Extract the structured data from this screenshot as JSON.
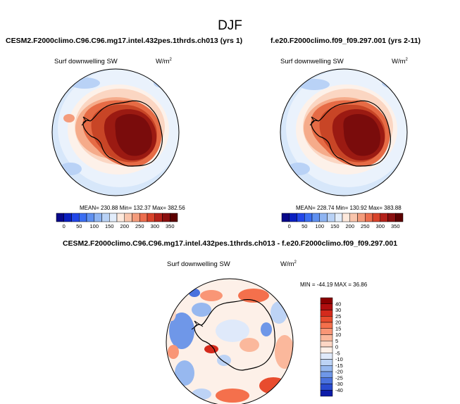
{
  "page": {
    "title": "DJF",
    "left_title": "CESM2.F2000climo.C96.C96.mg17.intel.432pes.1thrds.ch013 (yrs 1)",
    "right_title": "f.e20.F2000climo.f09_f09.297.001 (yrs 2-11)",
    "diff_title": "CESM2.F2000climo.C96.C96.mg17.intel.432pes.1thrds.ch013 - f.e20.F2000climo.f09_f09.297.001"
  },
  "chart_data": [
    {
      "type": "heatmap",
      "projection": "south polar stereographic",
      "variable": "Surf downwelling SW",
      "units": "W/m",
      "units_exponent": "2",
      "stats_text": "MEAN= 230.88  Min= 132.37  Max= 382.56",
      "mean": 230.88,
      "min": 132.37,
      "max": 382.56,
      "colorbar": {
        "orientation": "horizontal",
        "tick_labels": [
          "0",
          "50",
          "100",
          "150",
          "200",
          "250",
          "300",
          "350"
        ],
        "levels": [
          0,
          25,
          50,
          75,
          100,
          125,
          150,
          175,
          200,
          225,
          250,
          275,
          300,
          325,
          350
        ],
        "colors": [
          "#08088a",
          "#0a1fc0",
          "#2246e8",
          "#3b6ef2",
          "#5f90f0",
          "#8eb4f2",
          "#b9d2f6",
          "#e2edfb",
          "#fde9dc",
          "#f9c5ac",
          "#f49c7c",
          "#ec6e4e",
          "#d8432a",
          "#b4221a",
          "#8a0f0f",
          "#5c0000"
        ]
      }
    },
    {
      "type": "heatmap",
      "projection": "south polar stereographic",
      "variable": "Surf downwelling SW",
      "units": "W/m",
      "units_exponent": "2",
      "stats_text": "MEAN= 228.74  Min= 130.92  Max= 383.88",
      "mean": 228.74,
      "min": 130.92,
      "max": 383.88,
      "colorbar": {
        "orientation": "horizontal",
        "tick_labels": [
          "0",
          "50",
          "100",
          "150",
          "200",
          "250",
          "300",
          "350"
        ],
        "levels": [
          0,
          25,
          50,
          75,
          100,
          125,
          150,
          175,
          200,
          225,
          250,
          275,
          300,
          325,
          350
        ],
        "colors": [
          "#08088a",
          "#0a1fc0",
          "#2246e8",
          "#3b6ef2",
          "#5f90f0",
          "#8eb4f2",
          "#b9d2f6",
          "#e2edfb",
          "#fde9dc",
          "#f9c5ac",
          "#f49c7c",
          "#ec6e4e",
          "#d8432a",
          "#b4221a",
          "#8a0f0f",
          "#5c0000"
        ]
      }
    },
    {
      "type": "heatmap",
      "projection": "south polar stereographic",
      "variable": "Surf downwelling SW",
      "units": "W/m",
      "units_exponent": "2",
      "stats_text": "MIN = -44.19  MAX =  36.86",
      "min": -44.19,
      "max": 36.86,
      "colorbar": {
        "orientation": "vertical",
        "tick_labels": [
          "40",
          "30",
          "25",
          "20",
          "15",
          "10",
          "5",
          "0",
          "-5",
          "-10",
          "-15",
          "-20",
          "-25",
          "-30",
          "-40"
        ],
        "colors": [
          "#8a0000",
          "#b00e0e",
          "#d42a1c",
          "#e84c2e",
          "#f4704c",
          "#f99676",
          "#fbb89c",
          "#fdd6c4",
          "#fdf0e8",
          "#dfe9fa",
          "#bdd3f5",
          "#97b8ef",
          "#6f97e8",
          "#4a72de",
          "#2a4cd0",
          "#0c1ba8"
        ]
      }
    }
  ]
}
